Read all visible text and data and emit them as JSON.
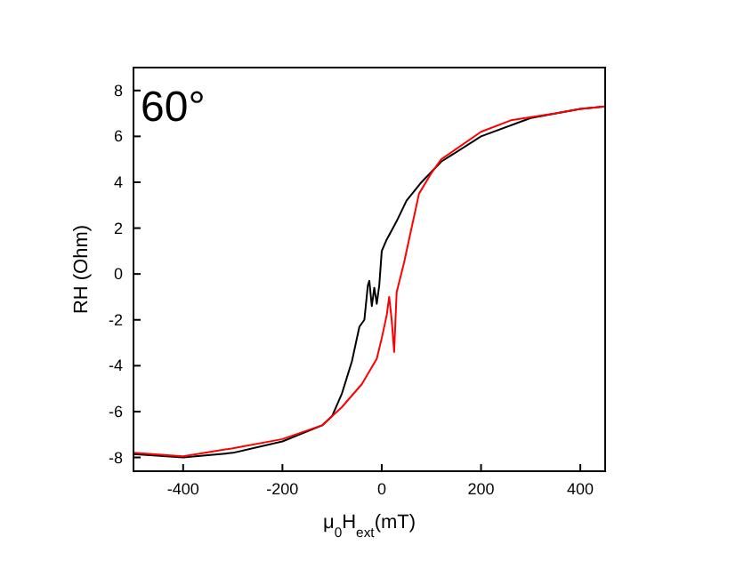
{
  "chart_data": {
    "type": "line",
    "xlabel": "μ$_{0}$H$_{ext}$(mT)",
    "ylabel": "RH (Ohm)",
    "annotations": [
      "60°"
    ],
    "xlim": [
      -500,
      450
    ],
    "xticks": [
      -400,
      -200,
      0,
      200,
      400
    ],
    "ylim": [
      -8.6,
      9
    ],
    "yticks": [
      -8,
      -6,
      -4,
      -2,
      0,
      2,
      4,
      6,
      8
    ],
    "grid": false,
    "series": [
      {
        "color": "#000000",
        "x": [
          -500,
          -400,
          -300,
          -200,
          -120,
          -100,
          -80,
          -60,
          -45,
          -35,
          -28,
          -25,
          -20,
          -15,
          -10,
          -5,
          0,
          10,
          30,
          50,
          80,
          120,
          200,
          300,
          400,
          450
        ],
        "values": [
          -7.85,
          -8.0,
          -7.8,
          -7.3,
          -6.6,
          -6.2,
          -5.2,
          -3.8,
          -2.3,
          -2.0,
          -0.5,
          -0.3,
          -1.4,
          -0.6,
          -1.3,
          -0.5,
          1.0,
          1.5,
          2.3,
          3.2,
          4.0,
          4.9,
          6.0,
          6.8,
          7.2,
          7.3
        ]
      },
      {
        "color": "#ff0000",
        "x": [
          -500,
          -400,
          -300,
          -200,
          -120,
          -80,
          -40,
          -10,
          0,
          10,
          15,
          20,
          25,
          30,
          45,
          60,
          75,
          100,
          120,
          200,
          260,
          350,
          400,
          450
        ],
        "values": [
          -7.8,
          -7.95,
          -7.6,
          -7.2,
          -6.6,
          -5.8,
          -4.8,
          -3.7,
          -2.8,
          -1.8,
          -1.0,
          -2.0,
          -3.4,
          -0.8,
          0.5,
          2.0,
          3.5,
          4.4,
          5.0,
          6.2,
          6.7,
          7.0,
          7.2,
          7.3
        ]
      }
    ]
  }
}
